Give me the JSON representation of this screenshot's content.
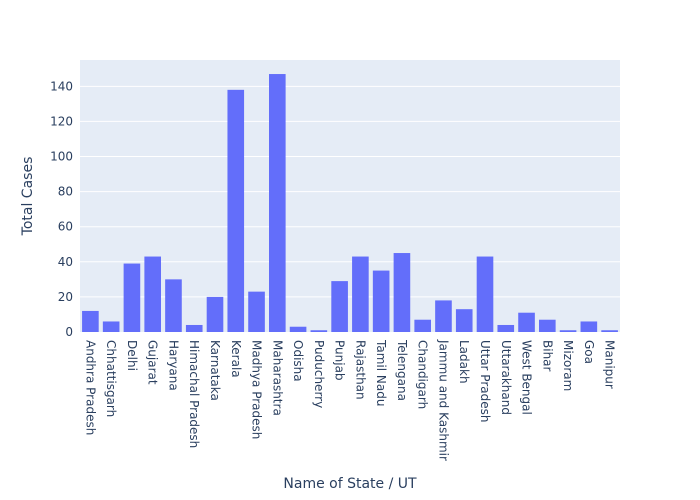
{
  "chart_data": {
    "type": "bar",
    "xlabel": "Name of State / UT",
    "ylabel": "Total Cases",
    "ylim": [
      0,
      155
    ],
    "yticks": [
      0,
      20,
      40,
      60,
      80,
      100,
      120,
      140
    ],
    "grid": true,
    "bar_color": "#636efa",
    "plot_bg": "#e5ecf6",
    "grid_color": "#ffffff",
    "categories": [
      "Andhra Pradesh",
      "Chhattisgarh",
      "Delhi",
      "Gujarat",
      "Haryana",
      "Himachal Pradesh",
      "Karnataka",
      "Kerala",
      "Madhya Pradesh",
      "Maharashtra",
      "Odisha",
      "Puducherry",
      "Punjab",
      "Rajasthan",
      "Tamil Nadu",
      "Telengana",
      "Chandigarh",
      "Jammu and Kashmir",
      "Ladakh",
      "Uttar Pradesh",
      "Uttarakhand",
      "West Bengal",
      "Bihar",
      "Mizoram",
      "Goa",
      "Manipur"
    ],
    "values": [
      12,
      6,
      39,
      43,
      30,
      4,
      20,
      138,
      23,
      147,
      3,
      1,
      29,
      43,
      35,
      45,
      7,
      18,
      13,
      43,
      4,
      11,
      7,
      1,
      6,
      1
    ]
  }
}
